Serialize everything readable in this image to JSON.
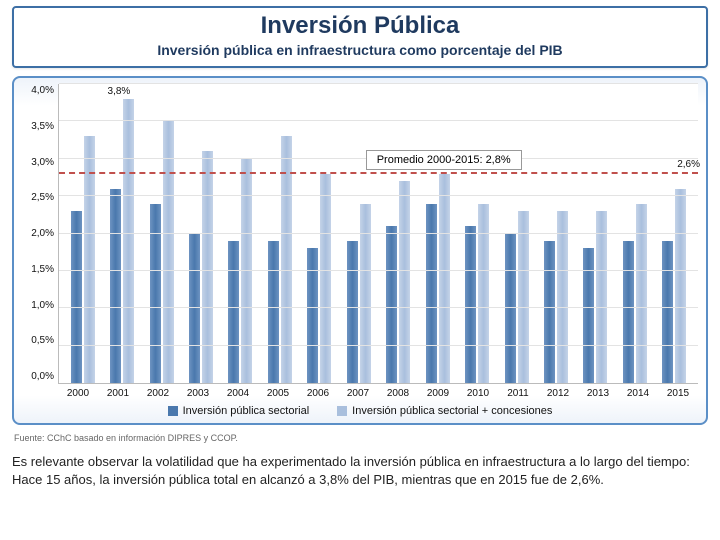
{
  "header": {
    "title": "Inversión Pública",
    "subtitle": "Inversión pública en infraestructura como porcentaje del PIB"
  },
  "chart": {
    "type": "grouped-bar",
    "y": {
      "min": 0.0,
      "max": 4.0,
      "step": 0.5,
      "ticks": [
        "4,0%",
        "3,5%",
        "3,0%",
        "2,5%",
        "2,0%",
        "1,5%",
        "1,0%",
        "0,5%",
        "0,0%"
      ]
    },
    "years": [
      "2000",
      "2001",
      "2002",
      "2003",
      "2004",
      "2005",
      "2006",
      "2007",
      "2008",
      "2009",
      "2010",
      "2011",
      "2012",
      "2013",
      "2014",
      "2015"
    ],
    "series": [
      {
        "key": "sectorial",
        "label": "Inversión pública sectorial",
        "values": [
          2.3,
          2.6,
          2.4,
          2.0,
          1.9,
          1.9,
          1.8,
          1.9,
          2.1,
          2.4,
          2.1,
          2.0,
          1.9,
          1.8,
          1.9,
          1.9
        ]
      },
      {
        "key": "conces",
        "label": "Inversión pública sectorial + concesiones",
        "values": [
          3.3,
          3.8,
          3.5,
          3.1,
          3.0,
          3.3,
          2.8,
          2.4,
          2.7,
          2.8,
          2.4,
          2.3,
          2.3,
          2.3,
          2.4,
          2.6
        ]
      }
    ],
    "average": {
      "value": 2.8,
      "label": "Promedio 2000-2015: 2,8%"
    },
    "peak_label": "3,8%",
    "end_label": "2,6%",
    "colors": {
      "bar_dark": "#4a78ad",
      "bar_light": "#a9bfdd",
      "avg_line": "#c0504d",
      "grid": "#e3e3e3",
      "border": "#5b8fc7"
    }
  },
  "source": "Fuente: CChC basado en información DIPRES y CCOP.",
  "body": "Es relevante observar la volatilidad que ha experimentado la inversión pública en infraestructura a lo largo del tiempo: Hace 15 años, la inversión pública total en alcanzó a 3,8% del PIB, mientras que en 2015 fue de 2,6%."
}
